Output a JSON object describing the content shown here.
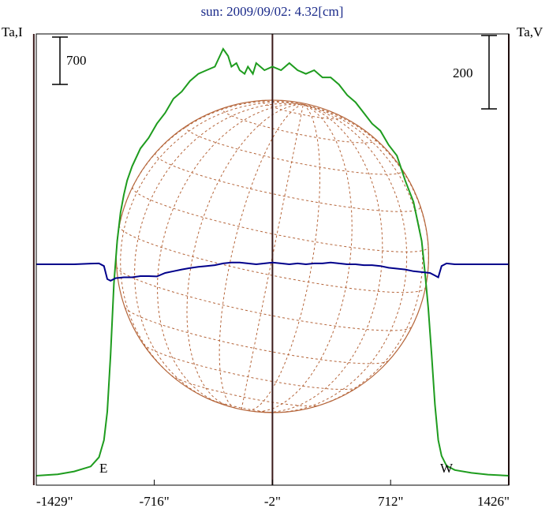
{
  "chart_data": {
    "type": "line",
    "title": "sun: 2009/09/02: 4.32[cm]",
    "left_axis_label": "Ta,I",
    "right_axis_label": "Ta,V",
    "x_ticks": [
      "-1429\"",
      "-716\"",
      "-2\"",
      "712\"",
      "1426\""
    ],
    "x_tick_values": [
      -1429,
      -716,
      -2,
      712,
      1426
    ],
    "xlim": [
      -1429,
      1426
    ],
    "scale_bar_left": "700",
    "scale_bar_right": "200",
    "markers": {
      "east": "E",
      "west": "W"
    },
    "limb_positions": [
      -1444,
      -2,
      1426
    ],
    "solar_disk": {
      "center_x": -2,
      "radius": 948
    },
    "colors": {
      "intensity": "#1e9c1e",
      "polarization": "#00008b",
      "limbs": "#3a1a1a",
      "disk": "#b5653a",
      "title": "#1a2a8a"
    },
    "series": [
      {
        "name": "I",
        "color": "#1e9c1e",
        "x": [
          -1429,
          -1300,
          -1200,
          -1100,
          -1050,
          -1020,
          -1000,
          -980,
          -960,
          -940,
          -930,
          -920,
          -900,
          -880,
          -850,
          -800,
          -750,
          -700,
          -650,
          -600,
          -550,
          -500,
          -450,
          -400,
          -350,
          -300,
          -270,
          -250,
          -220,
          -200,
          -170,
          -150,
          -120,
          -100,
          -50,
          -2,
          50,
          100,
          150,
          200,
          250,
          300,
          350,
          400,
          450,
          500,
          550,
          600,
          650,
          700,
          750,
          800,
          850,
          900,
          920,
          940,
          960,
          980,
          1000,
          1020,
          1050,
          1100,
          1200,
          1300,
          1426
        ],
        "y": [
          0,
          20,
          60,
          130,
          260,
          500,
          900,
          1700,
          2700,
          3300,
          3500,
          3700,
          3950,
          4150,
          4350,
          4600,
          4750,
          4950,
          5100,
          5300,
          5400,
          5550,
          5650,
          5700,
          5750,
          6000,
          5900,
          5750,
          5800,
          5700,
          5650,
          5750,
          5650,
          5800,
          5700,
          5750,
          5700,
          5800,
          5700,
          5650,
          5700,
          5600,
          5600,
          5500,
          5350,
          5250,
          5100,
          4950,
          4850,
          4650,
          4500,
          4150,
          3850,
          3300,
          2850,
          2350,
          1700,
          1000,
          500,
          280,
          140,
          80,
          40,
          15,
          0
        ]
      },
      {
        "name": "V",
        "color": "#00008b",
        "x": [
          -1429,
          -1200,
          -1100,
          -1050,
          -1020,
          -1000,
          -980,
          -950,
          -900,
          -850,
          -800,
          -750,
          -700,
          -650,
          -600,
          -550,
          -500,
          -450,
          -400,
          -350,
          -300,
          -250,
          -200,
          -150,
          -100,
          -50,
          -2,
          50,
          100,
          150,
          200,
          250,
          300,
          350,
          400,
          450,
          500,
          550,
          600,
          650,
          700,
          750,
          800,
          850,
          900,
          950,
          980,
          1000,
          1020,
          1050,
          1100,
          1200,
          1426
        ],
        "y": [
          0,
          0,
          4,
          5,
          -10,
          -85,
          -95,
          -80,
          -75,
          -75,
          -68,
          -68,
          -70,
          -50,
          -40,
          -30,
          -22,
          -15,
          -10,
          -5,
          5,
          10,
          10,
          5,
          0,
          5,
          10,
          5,
          0,
          5,
          0,
          5,
          5,
          10,
          5,
          0,
          0,
          -5,
          -5,
          -10,
          -20,
          -25,
          -30,
          -40,
          -45,
          -50,
          -65,
          -75,
          -10,
          5,
          0,
          0,
          0
        ]
      }
    ]
  }
}
